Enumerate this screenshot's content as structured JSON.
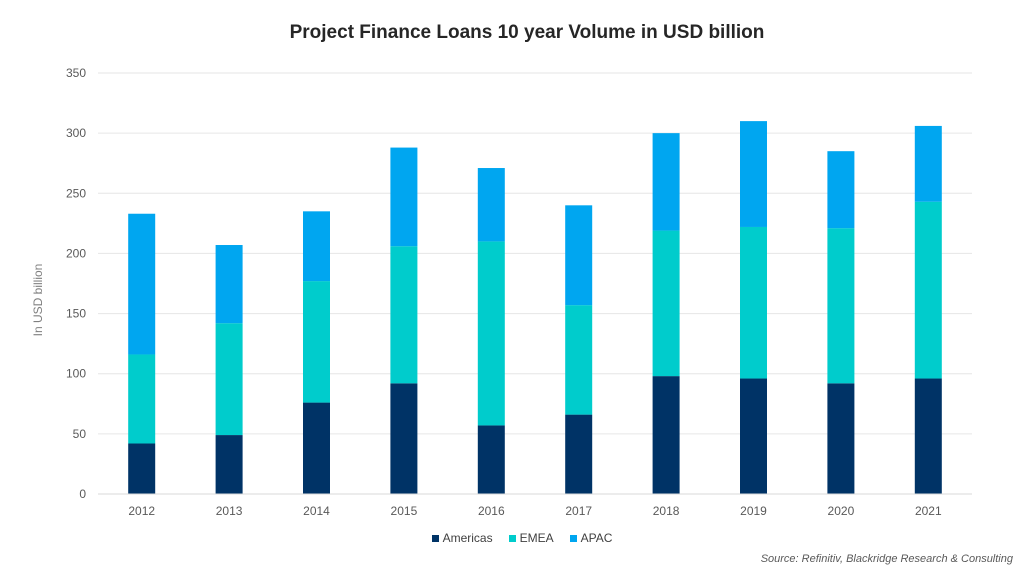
{
  "chart_data": {
    "type": "bar",
    "stacked": true,
    "title": "Project Finance Loans 10 year Volume in USD billion",
    "xlabel": "",
    "ylabel": "In USD billion",
    "ylim": [
      0,
      350
    ],
    "yticks": [
      0,
      50,
      100,
      150,
      200,
      250,
      300,
      350
    ],
    "grid": true,
    "legend_position": "bottom",
    "categories": [
      "2012",
      "2013",
      "2014",
      "2015",
      "2016",
      "2017",
      "2018",
      "2019",
      "2020",
      "2021"
    ],
    "series": [
      {
        "name": "Americas",
        "color": "#003366",
        "values": [
          42,
          49,
          76,
          92,
          57,
          66,
          98,
          96,
          92,
          96
        ]
      },
      {
        "name": "EMEA",
        "color": "#00CCCC",
        "values": [
          74,
          93,
          101,
          114,
          153,
          91,
          121,
          126,
          129,
          147
        ]
      },
      {
        "name": "APAC",
        "color": "#00A6F0",
        "values": [
          117,
          65,
          58,
          82,
          61,
          83,
          81,
          88,
          64,
          63
        ]
      }
    ]
  },
  "source_text": "Source: Refinitiv, Blackridge Research & Consulting"
}
